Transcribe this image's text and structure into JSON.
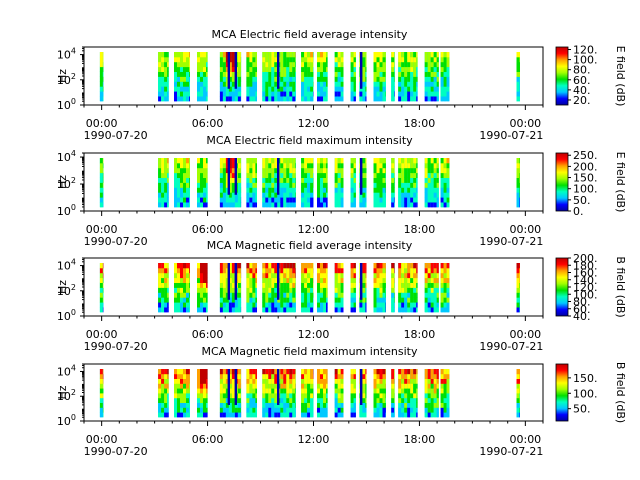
{
  "figure": {
    "x_ticks": [
      "00:00",
      "06:00",
      "12:00",
      "18:00",
      "00:00"
    ],
    "x_tick_hours": [
      0,
      6,
      12,
      18,
      24
    ],
    "x_start_date": "1990-07-20",
    "x_end_date": "1990-07-21",
    "x_range_hours": [
      -1,
      25
    ]
  },
  "chart_data": [
    {
      "type": "heatmap",
      "title": "MCA  Electric field average intensity",
      "ylabel": "Hz",
      "y_scale": "log",
      "ylim": [
        1,
        40000
      ],
      "y_ticks": [
        {
          "base": "10",
          "exp": "0"
        },
        {
          "base": "10",
          "exp": "2"
        },
        {
          "base": "10",
          "exp": "4"
        }
      ],
      "colorbar": {
        "label": "E field (dB)",
        "range": [
          10,
          125
        ],
        "ticks": [
          20,
          40,
          60,
          80,
          100,
          120
        ],
        "tick_labels": [
          "20.",
          "40.",
          "60.",
          "80.",
          "100.",
          "120."
        ]
      },
      "high_hour_range": [
        7,
        7.5
      ],
      "coverage_hours": [
        [
          -0.1,
          0.1
        ],
        [
          3.2,
          3.8
        ],
        [
          4.1,
          5.0
        ],
        [
          5.4,
          6.0
        ],
        [
          6.7,
          7.9
        ],
        [
          8.2,
          8.8
        ],
        [
          9.1,
          11.0
        ],
        [
          11.3,
          12.0
        ],
        [
          12.2,
          12.8
        ],
        [
          13.2,
          13.7
        ],
        [
          14.1,
          14.4
        ],
        [
          14.6,
          15.0
        ],
        [
          15.4,
          16.1
        ],
        [
          16.4,
          16.6
        ],
        [
          16.8,
          17.9
        ],
        [
          18.3,
          19.1
        ],
        [
          19.2,
          19.7
        ],
        [
          23.5,
          23.7
        ]
      ],
      "dark_hour_markers": [
        7.2,
        7.6,
        10.0,
        14.7
      ]
    },
    {
      "type": "heatmap",
      "title": "MCA  Electric field maximum intensity",
      "ylabel": "Hz",
      "y_scale": "log",
      "ylim": [
        1,
        20000
      ],
      "y_ticks": [
        {
          "base": "10",
          "exp": "0"
        },
        {
          "base": "10",
          "exp": "2"
        },
        {
          "base": "10",
          "exp": "4"
        }
      ],
      "colorbar": {
        "label": "E field (dB)",
        "range": [
          0,
          260
        ],
        "ticks": [
          0,
          50,
          100,
          150,
          200,
          250
        ],
        "tick_labels": [
          "0.",
          "50.",
          "100.",
          "150.",
          "200.",
          "250."
        ]
      },
      "high_hour_range": [
        7.0,
        7.6
      ],
      "coverage_hours": [
        [
          -0.1,
          0.1
        ],
        [
          3.2,
          3.8
        ],
        [
          4.1,
          5.0
        ],
        [
          5.4,
          6.0
        ],
        [
          6.7,
          7.9
        ],
        [
          8.2,
          8.8
        ],
        [
          9.1,
          11.0
        ],
        [
          11.3,
          12.0
        ],
        [
          12.2,
          12.8
        ],
        [
          13.2,
          13.7
        ],
        [
          14.1,
          14.4
        ],
        [
          14.6,
          15.0
        ],
        [
          15.4,
          16.1
        ],
        [
          16.4,
          16.6
        ],
        [
          16.8,
          17.9
        ],
        [
          18.3,
          19.1
        ],
        [
          19.2,
          19.7
        ],
        [
          23.5,
          23.7
        ]
      ],
      "dark_hour_markers": [
        7.2,
        7.6,
        10.0,
        14.7
      ]
    },
    {
      "type": "heatmap",
      "title": "MCA  Magnetic field average intensity",
      "ylabel": "Hz",
      "y_scale": "log",
      "ylim": [
        1,
        40000
      ],
      "y_ticks": [
        {
          "base": "10",
          "exp": "0"
        },
        {
          "base": "10",
          "exp": "2"
        },
        {
          "base": "10",
          "exp": "4"
        }
      ],
      "colorbar": {
        "label": "B field (dB)",
        "range": [
          40,
          200
        ],
        "ticks": [
          40,
          60,
          80,
          100,
          120,
          140,
          160,
          180,
          200
        ],
        "tick_labels": [
          "40.",
          "60.",
          "80.",
          "100.",
          "120.",
          "140.",
          "160.",
          "180.",
          "200."
        ]
      },
      "high_hour_range": [
        5.5,
        6.0
      ],
      "coverage_hours": [
        [
          -0.1,
          0.1
        ],
        [
          3.2,
          3.8
        ],
        [
          4.1,
          5.0
        ],
        [
          5.4,
          6.0
        ],
        [
          6.7,
          7.9
        ],
        [
          8.2,
          8.8
        ],
        [
          9.1,
          11.0
        ],
        [
          11.3,
          12.0
        ],
        [
          12.2,
          12.8
        ],
        [
          13.2,
          13.7
        ],
        [
          14.1,
          14.4
        ],
        [
          14.6,
          15.0
        ],
        [
          15.4,
          16.1
        ],
        [
          16.4,
          16.6
        ],
        [
          16.8,
          17.9
        ],
        [
          18.3,
          19.1
        ],
        [
          19.2,
          19.7
        ],
        [
          23.5,
          23.7
        ]
      ],
      "dark_hour_markers": [
        7.2,
        7.6,
        10.0,
        14.7
      ]
    },
    {
      "type": "heatmap",
      "title": "MCA  Magnetic field maximum intensity",
      "ylabel": "Hz",
      "y_scale": "log",
      "ylim": [
        1,
        40000
      ],
      "y_ticks": [
        {
          "base": "10",
          "exp": "0"
        },
        {
          "base": "10",
          "exp": "2"
        },
        {
          "base": "10",
          "exp": "4"
        }
      ],
      "colorbar": {
        "label": "B field (dB)",
        "range": [
          10,
          195
        ],
        "ticks": [
          50,
          100,
          150
        ],
        "tick_labels": [
          "50.",
          "100.",
          "150."
        ]
      },
      "high_hour_range": [
        5.5,
        6.0
      ],
      "coverage_hours": [
        [
          -0.1,
          0.1
        ],
        [
          3.2,
          3.8
        ],
        [
          4.1,
          5.0
        ],
        [
          5.4,
          6.0
        ],
        [
          6.7,
          7.9
        ],
        [
          8.2,
          8.8
        ],
        [
          9.1,
          11.0
        ],
        [
          11.3,
          12.0
        ],
        [
          12.2,
          12.8
        ],
        [
          13.2,
          13.7
        ],
        [
          14.1,
          14.4
        ],
        [
          14.6,
          15.0
        ],
        [
          15.4,
          16.1
        ],
        [
          16.4,
          16.6
        ],
        [
          16.8,
          17.9
        ],
        [
          18.3,
          19.1
        ],
        [
          19.2,
          19.7
        ],
        [
          23.5,
          23.7
        ]
      ],
      "dark_hour_markers": [
        7.2,
        7.6,
        10.0,
        14.7
      ]
    }
  ],
  "colors": {
    "colormap": [
      "#0000a0",
      "#0000ff",
      "#00c8ff",
      "#00ffc0",
      "#00e000",
      "#a0ff00",
      "#ffff00",
      "#ffa000",
      "#ff0000",
      "#c00000"
    ]
  }
}
